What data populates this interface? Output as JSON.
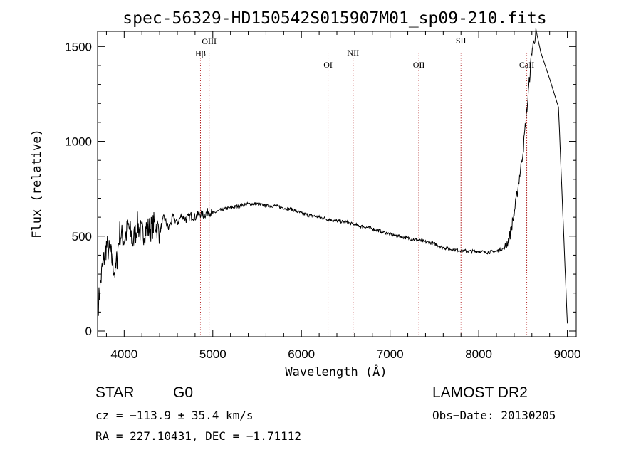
{
  "chart_data": {
    "type": "line",
    "title": "spec-56329-HD150542S015907M01_sp09-210.fits",
    "xlabel": "Wavelength (Å)",
    "ylabel": "Flux (relative)",
    "xlim": [
      3700,
      9100
    ],
    "ylim": [
      -30,
      1580
    ],
    "xticks": [
      "4000",
      "5000",
      "6000",
      "7000",
      "8000",
      "9000"
    ],
    "xtick_values": [
      4000,
      5000,
      6000,
      7000,
      8000,
      9000
    ],
    "yticks": [
      "0",
      "500",
      "1000",
      "1500"
    ],
    "ytick_values": [
      0,
      500,
      1000,
      1500
    ],
    "grid": false,
    "series": [
      {
        "x": [
          3710,
          3750,
          3800,
          3850,
          3900,
          3950,
          4000,
          4050,
          4100,
          4150,
          4200,
          4250,
          4300,
          4350,
          4400,
          4450,
          4500,
          4550,
          4600,
          4650,
          4700,
          4750,
          4800,
          4850,
          4900,
          4950,
          5000,
          5100,
          5200,
          5300,
          5400,
          5500,
          5600,
          5700,
          5800,
          5900,
          6000,
          6100,
          6200,
          6300,
          6400,
          6500,
          6600,
          6700,
          6800,
          6900,
          7000,
          7100,
          7200,
          7300,
          7400,
          7500,
          7600,
          7700,
          7800,
          7900,
          8000,
          8100,
          8200,
          8300,
          8350,
          8400,
          8450,
          8500,
          8550,
          8600,
          8650,
          8700,
          8800,
          8900,
          9000
        ],
        "y": [
          150,
          320,
          450,
          400,
          300,
          520,
          480,
          550,
          470,
          560,
          510,
          540,
          540,
          570,
          520,
          600,
          540,
          600,
          570,
          610,
          590,
          610,
          600,
          620,
          610,
          630,
          620,
          640,
          650,
          660,
          670,
          670,
          660,
          660,
          650,
          640,
          620,
          610,
          600,
          590,
          580,
          575,
          560,
          550,
          540,
          525,
          510,
          500,
          490,
          480,
          470,
          460,
          440,
          430,
          425,
          420,
          420,
          415,
          420,
          440,
          500,
          620,
          780,
          950,
          1200,
          1480,
          1580,
          1470,
          1330,
          1180,
          40
        ],
        "color": "#000000"
      }
    ],
    "annotations": [
      {
        "label": "OIII",
        "x": 4959
      },
      {
        "label": "Hβ",
        "x": 4861
      },
      {
        "label": "OI",
        "x": 6300
      },
      {
        "label": "NII",
        "x": 6583
      },
      {
        "label": "OII",
        "x": 7325
      },
      {
        "label": "SII",
        "x": 7800
      },
      {
        "label": "CaII",
        "x": 8542
      }
    ],
    "line_color": "#b22222"
  },
  "info": {
    "object_class": "STAR",
    "subclass": "G0",
    "survey": "LAMOST DR2",
    "cz": "cz = −113.9 ± 35.4 km/s",
    "obs_date": "Obs−Date: 20130205",
    "coords": "RA = 227.10431, DEC =  −1.71112"
  }
}
